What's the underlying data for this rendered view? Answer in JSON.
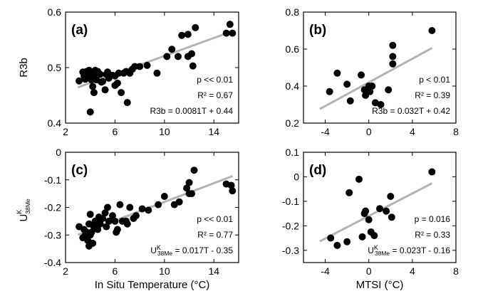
{
  "chart_data": [
    {
      "id": "a",
      "type": "scatter",
      "panel_label": "(a)",
      "ylabel": "R3b",
      "xlabel": "",
      "xlim": [
        2,
        16
      ],
      "ylim": [
        0.4,
        0.6
      ],
      "xticks": [
        2,
        6,
        10,
        14
      ],
      "yticks": [
        0.4,
        0.5,
        0.6
      ],
      "xtick_labels": [
        "2",
        "6",
        "10",
        "14"
      ],
      "ytick_labels": [
        "0.4",
        "0.5",
        "0.6"
      ],
      "stats": [
        "p << 0.01",
        "R² = 0.67",
        "R3b = 0.0081T + 0.44"
      ],
      "fit": {
        "slope": 0.0081,
        "intercept": 0.44,
        "x_range": [
          3,
          15.5
        ]
      },
      "points": [
        [
          3.1,
          0.476
        ],
        [
          3.4,
          0.492
        ],
        [
          3.5,
          0.485
        ],
        [
          3.6,
          0.479
        ],
        [
          3.7,
          0.493
        ],
        [
          3.8,
          0.49
        ],
        [
          3.9,
          0.484
        ],
        [
          3.9,
          0.495
        ],
        [
          4.0,
          0.49
        ],
        [
          4.0,
          0.42
        ],
        [
          4.1,
          0.487
        ],
        [
          4.1,
          0.478
        ],
        [
          4.2,
          0.492
        ],
        [
          4.2,
          0.466
        ],
        [
          4.3,
          0.487
        ],
        [
          4.3,
          0.455
        ],
        [
          4.4,
          0.495
        ],
        [
          4.5,
          0.478
        ],
        [
          4.6,
          0.493
        ],
        [
          4.8,
          0.488
        ],
        [
          4.9,
          0.474
        ],
        [
          5.0,
          0.475
        ],
        [
          5.2,
          0.46
        ],
        [
          5.3,
          0.488
        ],
        [
          5.4,
          0.492
        ],
        [
          5.5,
          0.481
        ],
        [
          5.8,
          0.486
        ],
        [
          6.0,
          0.485
        ],
        [
          6.0,
          0.468
        ],
        [
          6.2,
          0.472
        ],
        [
          6.3,
          0.49
        ],
        [
          6.5,
          0.455
        ],
        [
          6.7,
          0.49
        ],
        [
          6.9,
          0.493
        ],
        [
          7.0,
          0.437
        ],
        [
          7.2,
          0.49
        ],
        [
          7.4,
          0.497
        ],
        [
          7.6,
          0.502
        ],
        [
          8.0,
          0.502
        ],
        [
          8.6,
          0.504
        ],
        [
          9.4,
          0.49
        ],
        [
          10.2,
          0.52
        ],
        [
          10.6,
          0.533
        ],
        [
          11.1,
          0.52
        ],
        [
          11.4,
          0.558
        ],
        [
          11.9,
          0.56
        ],
        [
          11.9,
          0.52
        ],
        [
          12.2,
          0.525
        ],
        [
          12.3,
          0.503
        ],
        [
          12.5,
          0.572
        ],
        [
          15.0,
          0.562
        ],
        [
          15.3,
          0.578
        ],
        [
          15.5,
          0.562
        ]
      ]
    },
    {
      "id": "b",
      "type": "scatter",
      "panel_label": "(b)",
      "ylabel": "",
      "xlabel": "",
      "xlim": [
        -6,
        8
      ],
      "ylim": [
        0.2,
        0.8
      ],
      "xticks": [
        -4,
        0,
        4,
        8
      ],
      "yticks": [
        0.2,
        0.4,
        0.6,
        0.8
      ],
      "xtick_labels": [
        "-4",
        "0",
        "4",
        "8"
      ],
      "ytick_labels": [
        "0.2",
        "0.4",
        "0.6",
        "0.8"
      ],
      "stats": [
        "p < 0.01",
        "R² = 0.39",
        "R3b = 0.032T + 0.42"
      ],
      "fit": {
        "slope": 0.032,
        "intercept": 0.42,
        "x_range": [
          -4.5,
          5.8
        ]
      },
      "points": [
        [
          -3.6,
          0.37
        ],
        [
          -2.9,
          0.47
        ],
        [
          -2.0,
          0.41
        ],
        [
          -1.7,
          0.32
        ],
        [
          -0.7,
          0.46
        ],
        [
          -0.4,
          0.38
        ],
        [
          -0.3,
          0.35
        ],
        [
          0.0,
          0.4
        ],
        [
          0.1,
          0.37
        ],
        [
          0.3,
          0.4
        ],
        [
          0.6,
          0.31
        ],
        [
          1.1,
          0.3
        ],
        [
          1.8,
          0.38
        ],
        [
          2.2,
          0.62
        ],
        [
          2.2,
          0.56
        ],
        [
          2.2,
          0.52
        ],
        [
          5.8,
          0.7
        ]
      ]
    },
    {
      "id": "c",
      "type": "scatter",
      "panel_label": "(c)",
      "ylabel": "U^K_38Me",
      "xlabel": "In Situ Temperature (°C)",
      "xlim": [
        2,
        16
      ],
      "ylim": [
        -0.4,
        0.0
      ],
      "xticks": [
        2,
        6,
        10,
        14
      ],
      "yticks": [
        -0.4,
        -0.3,
        -0.2,
        -0.1,
        0.0
      ],
      "xtick_labels": [
        "2",
        "6",
        "10",
        "14"
      ],
      "ytick_labels": [
        "-0.4",
        "-0.3",
        "-0.2",
        "-0.1",
        "0"
      ],
      "stats": [
        "p << 0.01",
        "R² = 0.77",
        "U",
        "K",
        "38Me",
        " = 0.017T - 0.35"
      ],
      "fit": {
        "slope": 0.017,
        "intercept": -0.35,
        "x_range": [
          3,
          15.5
        ]
      },
      "points": [
        [
          3.1,
          -0.27
        ],
        [
          3.4,
          -0.31
        ],
        [
          3.5,
          -0.28
        ],
        [
          3.6,
          -0.3
        ],
        [
          3.7,
          -0.29
        ],
        [
          3.8,
          -0.32
        ],
        [
          3.9,
          -0.26
        ],
        [
          3.9,
          -0.34
        ],
        [
          4.0,
          -0.225
        ],
        [
          4.0,
          -0.3
        ],
        [
          4.1,
          -0.29
        ],
        [
          4.2,
          -0.33
        ],
        [
          4.3,
          -0.27
        ],
        [
          4.4,
          -0.25
        ],
        [
          4.6,
          -0.28
        ],
        [
          4.7,
          -0.235
        ],
        [
          4.8,
          -0.26
        ],
        [
          5.0,
          -0.24
        ],
        [
          5.2,
          -0.22
        ],
        [
          5.3,
          -0.27
        ],
        [
          5.4,
          -0.2
        ],
        [
          5.5,
          -0.25
        ],
        [
          5.8,
          -0.23
        ],
        [
          6.0,
          -0.25
        ],
        [
          6.1,
          -0.29
        ],
        [
          6.2,
          -0.28
        ],
        [
          6.4,
          -0.19
        ],
        [
          6.6,
          -0.25
        ],
        [
          6.9,
          -0.25
        ],
        [
          7.0,
          -0.26
        ],
        [
          7.2,
          -0.2
        ],
        [
          7.5,
          -0.24
        ],
        [
          7.7,
          -0.23
        ],
        [
          8.2,
          -0.205
        ],
        [
          8.7,
          -0.21
        ],
        [
          9.5,
          -0.19
        ],
        [
          10.0,
          -0.16
        ],
        [
          10.8,
          -0.19
        ],
        [
          11.2,
          -0.18
        ],
        [
          11.8,
          -0.13
        ],
        [
          12.0,
          -0.15
        ],
        [
          12.0,
          -0.11
        ],
        [
          12.2,
          -0.15
        ],
        [
          12.4,
          -0.065
        ],
        [
          15.0,
          -0.115
        ],
        [
          15.4,
          -0.12
        ],
        [
          15.5,
          -0.14
        ]
      ]
    },
    {
      "id": "d",
      "type": "scatter",
      "panel_label": "(d)",
      "ylabel": "",
      "xlabel": "MTSI (°C)",
      "xlim": [
        -6,
        8
      ],
      "ylim": [
        -0.35,
        0.1
      ],
      "xticks": [
        -4,
        0,
        4,
        8
      ],
      "yticks": [
        -0.3,
        -0.2,
        -0.1,
        0.0,
        0.1
      ],
      "xtick_labels": [
        "-4",
        "0",
        "4",
        "8"
      ],
      "ytick_labels": [
        "-0.3",
        "-0.2",
        "-0.1",
        "0",
        "0.1"
      ],
      "stats": [
        "p = 0.016",
        "R² = 0.33",
        "U",
        "K",
        "38Me",
        " = 0.023T - 0.16"
      ],
      "fit": {
        "slope": 0.023,
        "intercept": -0.16,
        "x_range": [
          -4.5,
          5.8
        ]
      },
      "points": [
        [
          -3.5,
          -0.25
        ],
        [
          -2.9,
          -0.28
        ],
        [
          -2.0,
          -0.265
        ],
        [
          -1.8,
          -0.065
        ],
        [
          -0.9,
          -0.01
        ],
        [
          -0.6,
          -0.245
        ],
        [
          -0.4,
          -0.15
        ],
        [
          -0.3,
          -0.14
        ],
        [
          0.0,
          -0.175
        ],
        [
          0.2,
          -0.225
        ],
        [
          0.5,
          -0.24
        ],
        [
          1.0,
          -0.13
        ],
        [
          1.6,
          -0.14
        ],
        [
          2.0,
          -0.08
        ],
        [
          2.1,
          -0.165
        ],
        [
          5.8,
          0.02
        ]
      ]
    }
  ]
}
